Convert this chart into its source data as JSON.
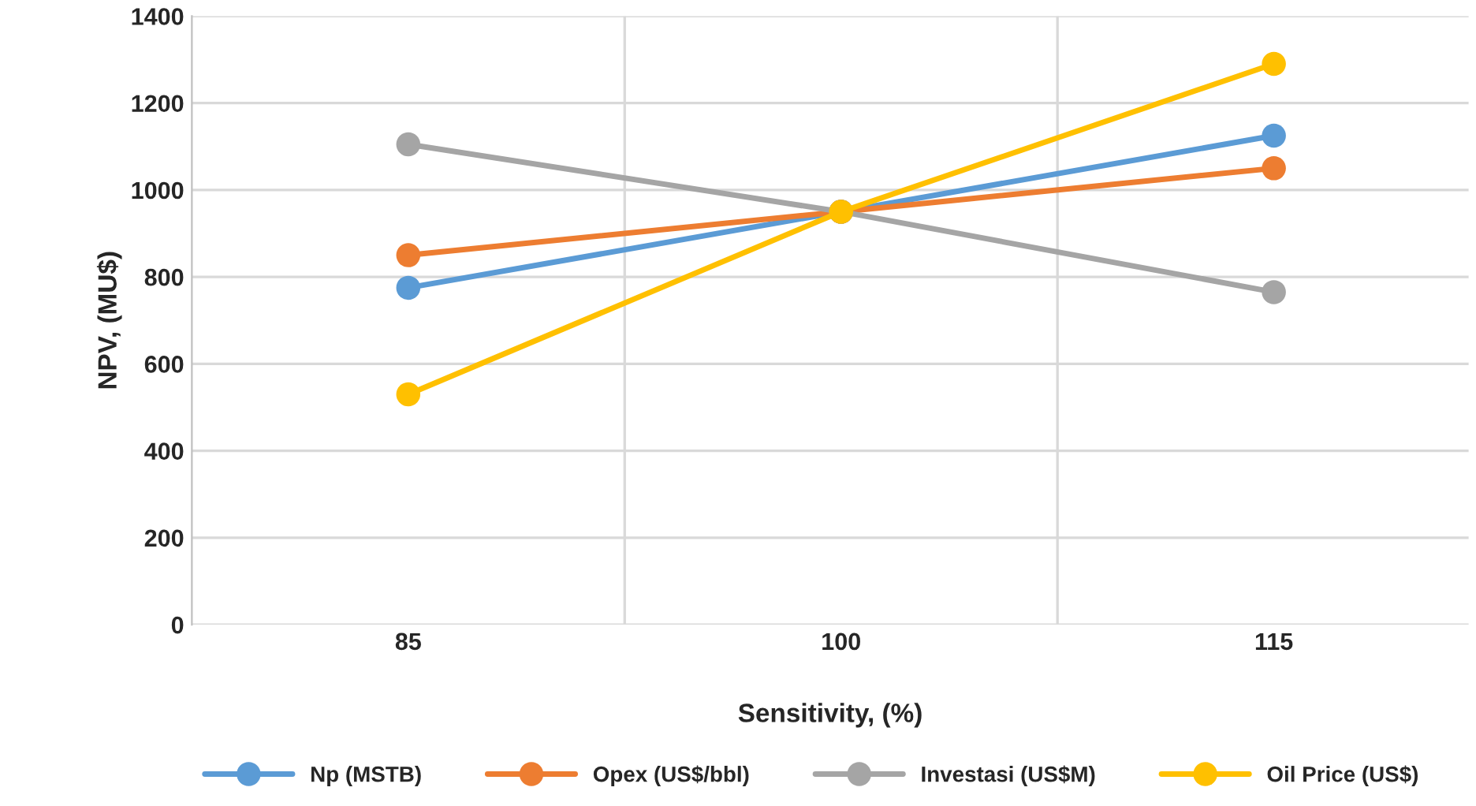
{
  "chart_data": {
    "type": "line",
    "xlabel": "Sensitivity, (%)",
    "ylabel": "NPV, (MU$)",
    "categories": [
      "85",
      "100",
      "115"
    ],
    "series": [
      {
        "name": "Np (MSTB)",
        "color": "#5b9bd5",
        "values": [
          775,
          950,
          1125
        ]
      },
      {
        "name": "Opex (US$/bbl)",
        "color": "#ed7d31",
        "values": [
          850,
          950,
          1050
        ]
      },
      {
        "name": "Investasi (US$M)",
        "color": "#a5a5a5",
        "values": [
          1105,
          950,
          765
        ]
      },
      {
        "name": "Oil Price (US$)",
        "color": "#ffc000",
        "values": [
          530,
          950,
          1290
        ]
      }
    ],
    "ylim": [
      0,
      1400
    ],
    "yticks": [
      0,
      200,
      400,
      600,
      800,
      1000,
      1200,
      1400
    ],
    "grid": true,
    "legend": "bottom",
    "marker": "circle",
    "line_style": "solid"
  }
}
